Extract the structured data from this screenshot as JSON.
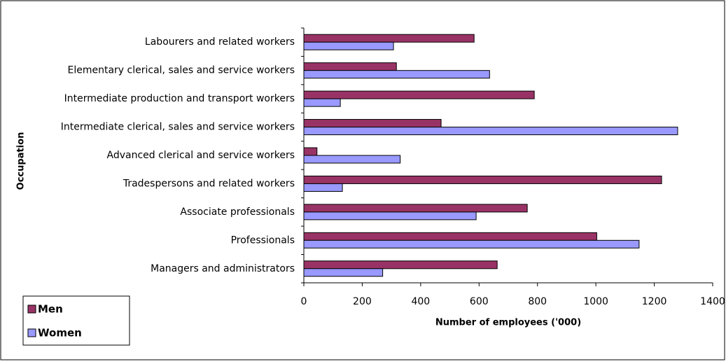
{
  "chart_data": {
    "type": "bar",
    "orientation": "horizontal",
    "x_label": "Number of employees ('000)",
    "y_label": "Occupation",
    "categories": [
      "Managers and administrators",
      "Professionals",
      "Associate professionals",
      "Tradespersons and related workers",
      "Advanced clerical and service workers",
      "Intermediate clerical, sales and service workers",
      "Intermediate production and transport workers",
      "Elementary clerical, sales and service workers",
      "Labourers and related workers"
    ],
    "series": [
      {
        "name": "Men",
        "color": "#993366",
        "values": [
          662,
          1003,
          765,
          1225,
          45,
          470,
          789,
          317,
          583
        ]
      },
      {
        "name": "Women",
        "color": "#9999ff",
        "values": [
          270,
          1148,
          590,
          132,
          330,
          1280,
          125,
          636,
          307
        ]
      }
    ],
    "xlim": [
      0,
      1400
    ],
    "xticks": [
      0,
      200,
      400,
      600,
      800,
      1000,
      1200,
      1400
    ],
    "legend": "bottom-left",
    "grid": false
  }
}
